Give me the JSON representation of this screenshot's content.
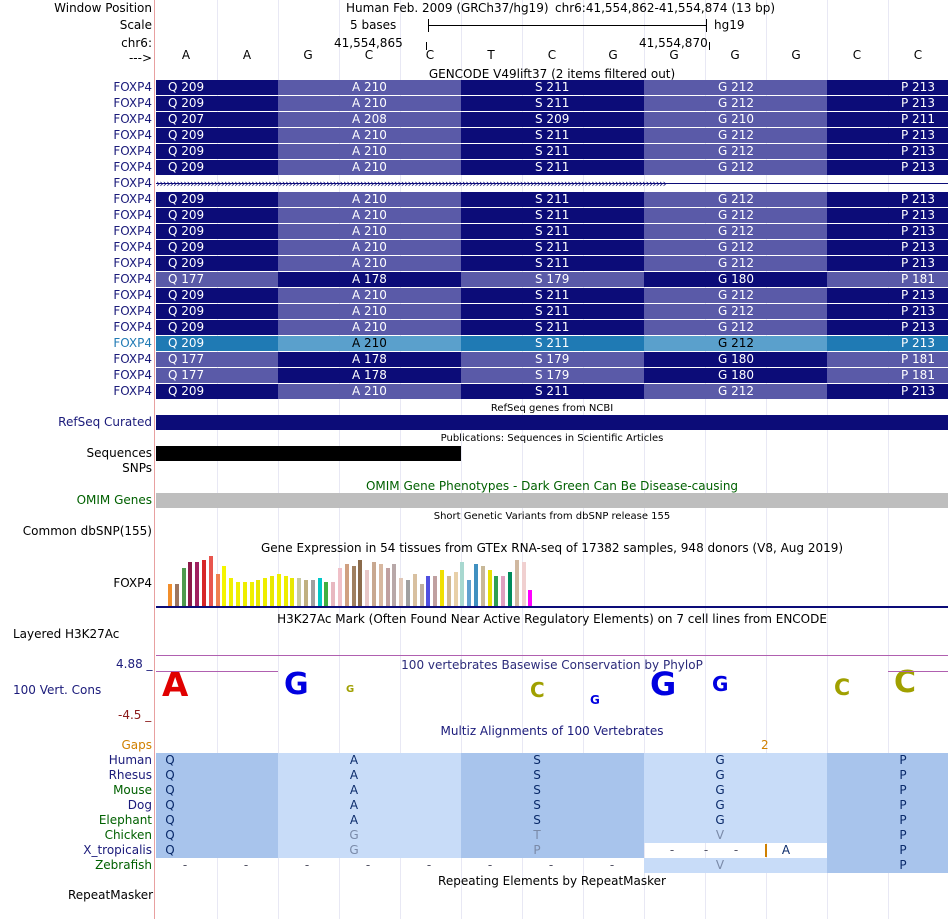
{
  "header": {
    "window_position_label": "Window Position",
    "scale_label": "Scale",
    "chrom_label": "chr6:",
    "arrow_label": "--->",
    "assembly": "Human Feb. 2009 (GRCh37/hg19)",
    "range": "chr6:41,554,862-41,554,874 (13 bp)",
    "scale": "5 bases",
    "db": "hg19",
    "pos_left": "41,554,865",
    "pos_right": "41,554,870"
  },
  "bases": [
    "A",
    "A",
    "G",
    "C",
    "C",
    "T",
    "C",
    "G",
    "G",
    "G",
    "G",
    "C",
    "C"
  ],
  "gencode": {
    "title": "GENCODE V49lift37 (2 items filtered out)",
    "rows": [
      {
        "name": "FOXP4",
        "aa": [
          "Q 209",
          "A 210",
          "S 211",
          "G 212",
          "P 213"
        ]
      },
      {
        "name": "FOXP4",
        "aa": [
          "Q 209",
          "A 210",
          "S 211",
          "G 212",
          "P 213"
        ]
      },
      {
        "name": "FOXP4",
        "aa": [
          "Q 207",
          "A 208",
          "S 209",
          "G 210",
          "P 211"
        ]
      },
      {
        "name": "FOXP4",
        "aa": [
          "Q 209",
          "A 210",
          "S 211",
          "G 212",
          "P 213"
        ]
      },
      {
        "name": "FOXP4",
        "aa": [
          "Q 209",
          "A 210",
          "S 211",
          "G 212",
          "P 213"
        ]
      },
      {
        "name": "FOXP4",
        "aa": [
          "Q 209",
          "A 210",
          "S 211",
          "G 212",
          "P 213"
        ]
      },
      {
        "name": "FOXP4",
        "aa": []
      },
      {
        "name": "FOXP4",
        "aa": [
          "Q 209",
          "A 210",
          "S 211",
          "G 212",
          "P 213"
        ]
      },
      {
        "name": "FOXP4",
        "aa": [
          "Q 209",
          "A 210",
          "S 211",
          "G 212",
          "P 213"
        ]
      },
      {
        "name": "FOXP4",
        "aa": [
          "Q 209",
          "A 210",
          "S 211",
          "G 212",
          "P 213"
        ]
      },
      {
        "name": "FOXP4",
        "aa": [
          "Q 209",
          "A 210",
          "S 211",
          "G 212",
          "P 213"
        ]
      },
      {
        "name": "FOXP4",
        "aa": [
          "Q 209",
          "A 210",
          "S 211",
          "G 212",
          "P 213"
        ]
      },
      {
        "name": "FOXP4",
        "aa": [
          "Q 177",
          "A 178",
          "S 179",
          "G 180",
          "P 181"
        ]
      },
      {
        "name": "FOXP4",
        "aa": [
          "Q 209",
          "A 210",
          "S 211",
          "G 212",
          "P 213"
        ]
      },
      {
        "name": "FOXP4",
        "aa": [
          "Q 209",
          "A 210",
          "S 211",
          "G 212",
          "P 213"
        ]
      },
      {
        "name": "FOXP4",
        "aa": [
          "Q 209",
          "A 210",
          "S 211",
          "G 212",
          "P 213"
        ]
      },
      {
        "name": "FOXP4",
        "aa": [
          "Q 209",
          "A 210",
          "S 211",
          "G 212",
          "P 213"
        ]
      },
      {
        "name": "FOXP4",
        "aa": [
          "Q 177",
          "A 178",
          "S 179",
          "G 180",
          "P 181"
        ]
      },
      {
        "name": "FOXP4",
        "aa": [
          "Q 177",
          "A 178",
          "S 179",
          "G 180",
          "P 181"
        ]
      },
      {
        "name": "FOXP4",
        "aa": [
          "Q 209",
          "A 210",
          "S 211",
          "G 212",
          "P 213"
        ]
      }
    ]
  },
  "refseq": {
    "title": "RefSeq genes from NCBI",
    "label": "RefSeq Curated"
  },
  "publications": {
    "title": "Publications: Sequences in Scientific Articles",
    "label": "Sequences"
  },
  "snps": {
    "label": "SNPs"
  },
  "omim": {
    "title": "OMIM Gene Phenotypes - Dark Green Can Be Disease-causing",
    "label": "OMIM Genes"
  },
  "dbsnp": {
    "title": "Short Genetic Variants from dbSNP release 155",
    "label": "Common dbSNP(155)"
  },
  "gtex": {
    "title": "Gene Expression in 54 tissues from GTEx RNA-seq of 17382 samples, 948 donors (V8, Aug 2019)",
    "label": "FOXP4",
    "values": [
      22,
      22,
      38,
      44,
      44,
      46,
      50,
      32,
      40,
      28,
      24,
      24,
      24,
      26,
      28,
      30,
      32,
      30,
      28,
      28,
      26,
      26,
      28,
      24,
      24,
      38,
      42,
      40,
      46,
      36,
      44,
      42,
      38,
      42,
      28,
      26,
      32,
      22,
      30,
      30,
      36,
      30,
      34,
      44,
      26,
      42,
      40,
      36,
      30,
      30,
      34,
      46,
      44,
      16
    ],
    "colors": [
      "#f28e2b",
      "#9c755f",
      "#4e9a4e",
      "#8b1a4a",
      "#a02060",
      "#d62728",
      "#e8554e",
      "#f08050",
      "#f5f500",
      "#f0f000",
      "#f0f000",
      "#eeee00",
      "#f0f000",
      "#e8e800",
      "#eeee00",
      "#e8e800",
      "#f0f000",
      "#eeee00",
      "#e8e800",
      "#c8c8a0",
      "#c0b080",
      "#a0a0a0",
      "#00c8c8",
      "#40b040",
      "#e8b8c0",
      "#f0c0c8",
      "#d0a080",
      "#a08060",
      "#8b6b4b",
      "#e8c8c8",
      "#c8a890",
      "#d8b8a0",
      "#c0a0a0",
      "#b8a8a8",
      "#e0c8b8",
      "#a0a0a0",
      "#d8c0a0",
      "#c0b0a0",
      "#5050e0",
      "#c0a0a0",
      "#f0e000",
      "#d0b890",
      "#e8d0a8",
      "#a8d8d0",
      "#60a0d0",
      "#4090c0",
      "#c8b898",
      "#e8e000",
      "#30a050",
      "#e0a0c0",
      "#008b5b",
      "#d0b8a0",
      "#f0d0d0",
      "#ff00ff"
    ]
  },
  "h3k27ac": {
    "title": "H3K27Ac Mark (Often Found Near Active Regulatory Elements) on 7 cell lines from ENCODE",
    "label": "Layered H3K27Ac"
  },
  "phylop": {
    "title": "100 vertebrates Basewise Conservation by PhyloP",
    "label": "100 Vert. Cons",
    "max": "4.88 _",
    "min": "-4.5 _"
  },
  "multiz": {
    "title": "Multiz Alignments of 100 Vertebrates",
    "gaps_label": "Gaps",
    "gap_count": "2",
    "species": [
      {
        "name": "Human",
        "aa": [
          "Q",
          "A",
          "S",
          "G",
          "P"
        ]
      },
      {
        "name": "Rhesus",
        "aa": [
          "Q",
          "A",
          "S",
          "G",
          "P"
        ]
      },
      {
        "name": "Mouse",
        "aa": [
          "Q",
          "A",
          "S",
          "G",
          "P"
        ]
      },
      {
        "name": "Dog",
        "aa": [
          "Q",
          "A",
          "S",
          "G",
          "P"
        ]
      },
      {
        "name": "Elephant",
        "aa": [
          "Q",
          "A",
          "S",
          "G",
          "P"
        ]
      },
      {
        "name": "Chicken",
        "aa": [
          "Q",
          "G",
          "T",
          "V",
          "P"
        ]
      },
      {
        "name": "X_tropicalis",
        "aa": [
          "Q",
          "G",
          "P",
          "A",
          "P"
        ]
      },
      {
        "name": "Zebrafish",
        "aa": [
          "",
          "",
          "",
          "V",
          "P"
        ]
      }
    ]
  },
  "repeatmasker": {
    "title": "Repeating Elements by RepeatMasker",
    "label": "RepeatMasker"
  },
  "colors": {
    "dark": "#0c0c78",
    "mid": "#5a5aa8",
    "light": "#7878b8",
    "highlight": "#1f7ab4",
    "highlight_light": "#5aa0cc",
    "label_blue": "#1a1a7a",
    "omim_green": "#006000"
  }
}
